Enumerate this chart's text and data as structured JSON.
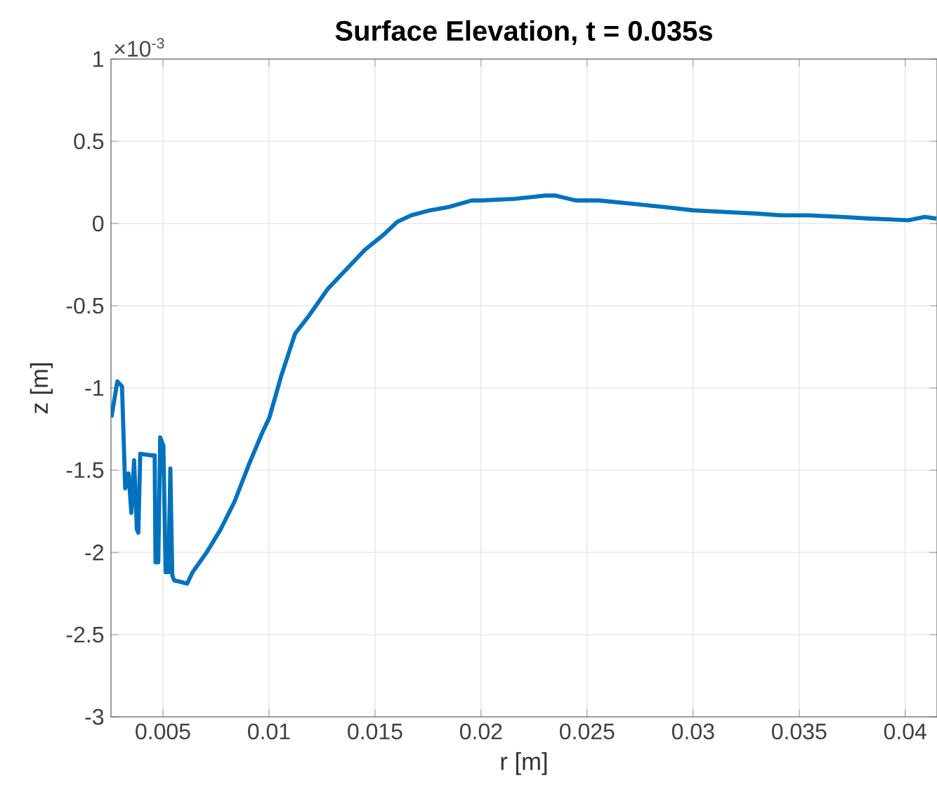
{
  "chart_data": {
    "type": "line",
    "title": "Surface Elevation,  t = 0.035s",
    "xlabel": "r [m]",
    "ylabel": "z [m]",
    "annotations": [
      "×10$^{-3}$"
    ],
    "x": [
      0.00257,
      0.00285,
      0.00307,
      0.00322,
      0.00338,
      0.00351,
      0.00364,
      0.00377,
      0.00384,
      0.00393,
      0.00443,
      0.00461,
      0.00465,
      0.00478,
      0.00487,
      0.00502,
      0.00513,
      0.00526,
      0.00535,
      0.00544,
      0.00553,
      0.00586,
      0.00614,
      0.0064,
      0.00706,
      0.00772,
      0.00838,
      0.00904,
      0.00969,
      0.01002,
      0.01057,
      0.01123,
      0.01189,
      0.01276,
      0.01364,
      0.01452,
      0.01539,
      0.01605,
      0.01671,
      0.01759,
      0.01846,
      0.01956,
      0.02,
      0.02161,
      0.02304,
      0.02348,
      0.02447,
      0.02557,
      0.02711,
      0.02865,
      0.03,
      0.0315,
      0.03304,
      0.03414,
      0.03546,
      0.037,
      0.03832,
      0.04015,
      0.04092,
      0.04147
    ],
    "series": [
      {
        "color": "#0072bd",
        "values": [
          -1.18,
          -0.96,
          -0.99,
          -1.61,
          -1.52,
          -1.76,
          -1.44,
          -1.86,
          -1.88,
          -1.4,
          -1.41,
          -1.41,
          -2.06,
          -2.06,
          -1.3,
          -1.35,
          -2.12,
          -2.12,
          -1.49,
          -2.14,
          -2.17,
          -2.18,
          -2.19,
          -2.12,
          -2.0,
          -1.86,
          -1.69,
          -1.47,
          -1.27,
          -1.18,
          -0.93,
          -0.67,
          -0.56,
          -0.4,
          -0.28,
          -0.16,
          -0.07,
          0.01,
          0.05,
          0.08,
          0.1,
          0.14,
          0.14,
          0.15,
          0.17,
          0.17,
          0.14,
          0.14,
          0.12,
          0.1,
          0.08,
          0.07,
          0.06,
          0.05,
          0.05,
          0.04,
          0.03,
          0.02,
          0.04,
          0.03
        ]
      }
    ],
    "xlim": [
      0.00255,
      0.0415
    ],
    "ylim": [
      -3,
      1
    ],
    "xticks": [
      0.005,
      0.01,
      0.015,
      0.02,
      0.025,
      0.03,
      0.035,
      0.04
    ],
    "yticks": [
      -3,
      -2.5,
      -2,
      -1.5,
      -1,
      -0.5,
      0,
      0.5,
      1
    ],
    "grid": true,
    "line_style": "solid",
    "marker": "none"
  }
}
